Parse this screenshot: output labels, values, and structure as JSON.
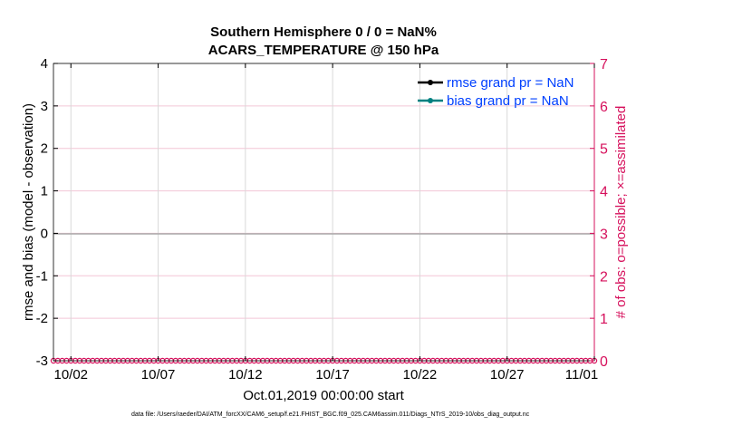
{
  "chart_data": {
    "type": "line",
    "title": [
      "Southern Hemisphere 0 / 0 = NaN%",
      "ACARS_TEMPERATURE @ 150 hPa"
    ],
    "xlabel": "Oct.01,2019 00:00:00 start",
    "ylabel": "rmse and bias (model - observation)",
    "y2label": "# of obs: o=possible; ×=assimilated",
    "xlim": [
      "2019-10-01",
      "2019-11-01"
    ],
    "ylim": [
      -3,
      4
    ],
    "y2lim": [
      0,
      7
    ],
    "xticks": [
      "10/02",
      "10/07",
      "10/12",
      "10/17",
      "10/22",
      "10/27",
      "11/01"
    ],
    "xtick_days": [
      1,
      6,
      11,
      16,
      21,
      26,
      31
    ],
    "yticks": [
      -3,
      -2,
      -1,
      0,
      1,
      2,
      3,
      4
    ],
    "y2ticks": [
      0,
      1,
      2,
      3,
      4,
      5,
      6,
      7
    ],
    "grid": true,
    "legend_placement": "top-right",
    "series": [
      {
        "name": "rmse grand pr = NaN",
        "color": "#000000",
        "values": []
      },
      {
        "name": "bias grand pr = NaN",
        "color": "#008080",
        "values": []
      },
      {
        "name": "obs count",
        "axis": "right",
        "color": "#d6105c",
        "values_constant": 0,
        "marker": "o",
        "step_days": 0.25
      }
    ],
    "zero_line": 0,
    "colors": {
      "right_axis": "#d6105c",
      "legend_text": "#0040ff",
      "grid_h": "#f3c6d6",
      "grid_v": "#d9d9d9"
    }
  },
  "footer": "data file: /Users/raeder/DAI/ATM_forcXX/CAM6_setup/f.e21.FHIST_BGC.f09_025.CAM6assim.011/Diags_NTrS_2019-10/obs_diag_output.nc"
}
